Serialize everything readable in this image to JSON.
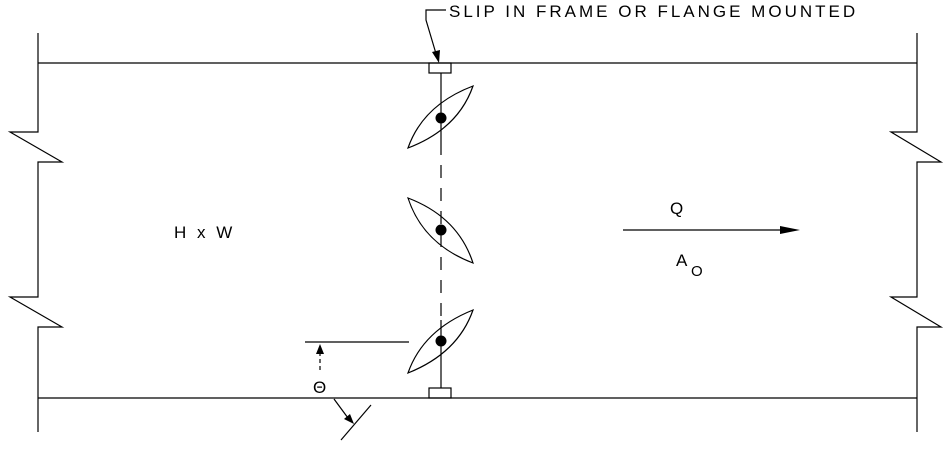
{
  "diagram": {
    "callout": "SLIP IN FRAME OR FLANGE MOUNTED",
    "duct_size": "H x W",
    "flow_label": "Q",
    "area_label": "A",
    "area_subscript": "O",
    "angle_label": "Θ"
  }
}
